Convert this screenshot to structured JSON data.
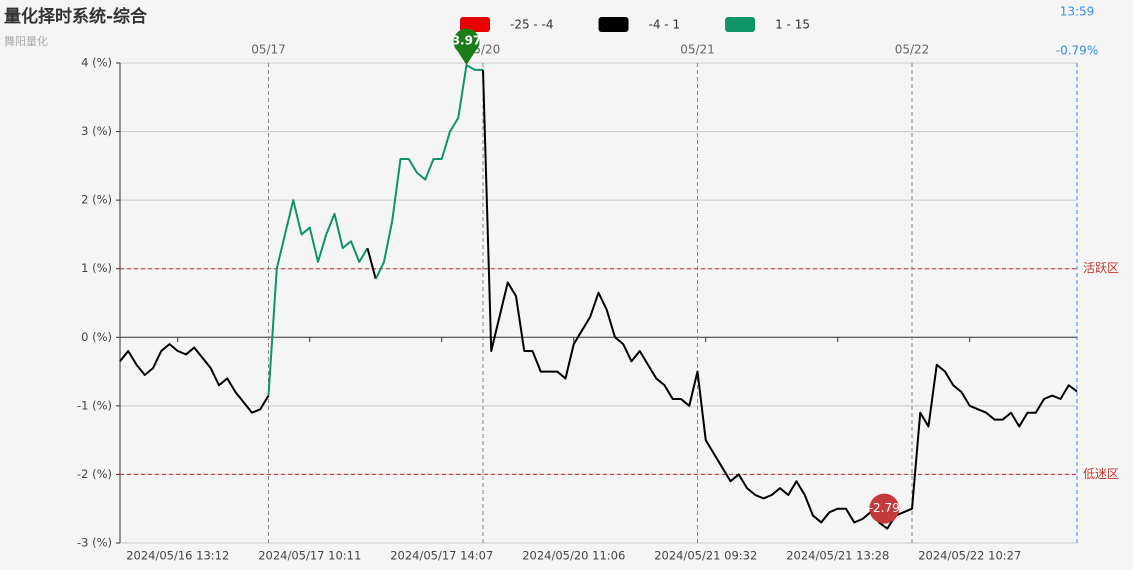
{
  "chart_data": {
    "type": "line",
    "title": "量化择时系统-综合",
    "subtitle": "舞阳量化",
    "categories": [
      null,
      null,
      null,
      null,
      null,
      null,
      null,
      "2024/05/16 13:12",
      null,
      null,
      null,
      null,
      null,
      null,
      null,
      null,
      null,
      null,
      null,
      null,
      null,
      null,
      null,
      "2024/05/17 10:11",
      null,
      null,
      null,
      null,
      null,
      null,
      null,
      null,
      null,
      null,
      null,
      null,
      null,
      null,
      null,
      "2024/05/17 14:07",
      null,
      null,
      null,
      null,
      null,
      null,
      null,
      null,
      null,
      null,
      null,
      null,
      null,
      null,
      null,
      "2024/05/20 11:06",
      null,
      null,
      null,
      null,
      null,
      null,
      null,
      null,
      null,
      null,
      null,
      null,
      null,
      null,
      null,
      "2024/05/21 09:32",
      null,
      null,
      null,
      null,
      null,
      null,
      null,
      null,
      null,
      null,
      null,
      null,
      null,
      null,
      null,
      "2024/05/21 13:28",
      null,
      null,
      null,
      null,
      null,
      null,
      null,
      null,
      null,
      null,
      null,
      null,
      null,
      null,
      null,
      "2024/05/22 10:27",
      null,
      null,
      null,
      null,
      null,
      null,
      null,
      null,
      null,
      null,
      null,
      null,
      null
    ],
    "day_labels": [
      null,
      null,
      null,
      null,
      null,
      null,
      null,
      null,
      null,
      null,
      null,
      null,
      null,
      null,
      null,
      null,
      null,
      null,
      "05/17",
      null,
      null,
      null,
      null,
      null,
      null,
      null,
      null,
      null,
      null,
      null,
      null,
      null,
      null,
      null,
      null,
      null,
      null,
      null,
      null,
      null,
      null,
      null,
      null,
      null,
      "05/20",
      null,
      null,
      null,
      null,
      null,
      null,
      null,
      null,
      null,
      null,
      null,
      null,
      null,
      null,
      null,
      null,
      null,
      null,
      null,
      null,
      null,
      null,
      null,
      null,
      null,
      "05/21",
      null,
      null,
      null,
      null,
      null,
      null,
      null,
      null,
      null,
      null,
      null,
      null,
      null,
      null,
      null,
      null,
      null,
      null,
      null,
      null,
      null,
      null,
      null,
      null,
      null,
      "05/22",
      null,
      null,
      null,
      null,
      null,
      null,
      null,
      null,
      null,
      null,
      null,
      null,
      null,
      null,
      null,
      null,
      null,
      null,
      null,
      null
    ],
    "values": [
      -0.35,
      -0.2,
      -0.4,
      -0.55,
      -0.45,
      -0.2,
      -0.1,
      -0.2,
      -0.25,
      -0.15,
      -0.3,
      -0.45,
      -0.7,
      -0.6,
      -0.8,
      -0.95,
      -1.1,
      -1.05,
      -0.85,
      1.0,
      1.5,
      2.0,
      1.5,
      1.6,
      1.1,
      1.5,
      1.8,
      1.3,
      1.4,
      1.1,
      1.3,
      0.85,
      1.1,
      1.7,
      2.6,
      2.6,
      2.4,
      2.3,
      2.6,
      2.6,
      3.0,
      3.2,
      3.97,
      3.9,
      3.9,
      -0.2,
      0.3,
      0.8,
      0.6,
      -0.2,
      -0.2,
      -0.5,
      -0.5,
      -0.5,
      -0.6,
      -0.1,
      0.1,
      0.3,
      0.65,
      0.4,
      0.0,
      -0.1,
      -0.35,
      -0.2,
      -0.4,
      -0.6,
      -0.7,
      -0.9,
      -0.9,
      -1.0,
      -0.5,
      -1.5,
      -1.7,
      -1.9,
      -2.1,
      -2.0,
      -2.2,
      -2.3,
      -2.35,
      -2.3,
      -2.2,
      -2.3,
      -2.1,
      -2.3,
      -2.6,
      -2.7,
      -2.55,
      -2.5,
      -2.5,
      -2.7,
      -2.65,
      -2.55,
      -2.7,
      -2.79,
      -2.6,
      -2.55,
      -2.5,
      -1.1,
      -1.3,
      -0.4,
      -0.5,
      -0.7,
      -0.8,
      -1.0,
      -1.05,
      -1.1,
      -1.2,
      -1.2,
      -1.1,
      -1.3,
      -1.1,
      -1.1,
      -0.9,
      -0.85,
      -0.9,
      -0.7,
      -0.79
    ],
    "end_label": {
      "time": "13:59",
      "value": "-0.79%"
    },
    "color_ranges": [
      {
        "name": "-25 - -4",
        "color": "#e60000",
        "range": [
          -25,
          -4
        ]
      },
      {
        "name": "-4 - 1",
        "color": "#000000",
        "range": [
          -4,
          1
        ]
      },
      {
        "name": "1 - 15",
        "color": "#0e9466",
        "range": [
          1,
          15
        ]
      }
    ],
    "marker_colors": {
      "max": "#1a7d1a",
      "min": "#c43a3a"
    },
    "reference_lines": [
      {
        "value": 1,
        "label": "活跃区",
        "color": "#c0392b"
      },
      {
        "value": -2,
        "label": "低迷区",
        "color": "#c0392b"
      }
    ],
    "ylim": [
      -3,
      4
    ],
    "yticks": [
      {
        "value": 4,
        "label": "4 (%)"
      },
      {
        "value": 3,
        "label": "3 (%)"
      },
      {
        "value": 2,
        "label": "2 (%)"
      },
      {
        "value": 1,
        "label": "1 (%)"
      },
      {
        "value": 0,
        "label": "0 (%)"
      },
      {
        "value": -1,
        "label": "-1 (%)"
      },
      {
        "value": -2,
        "label": "-2 (%)"
      },
      {
        "value": -3,
        "label": "-3 (%)"
      }
    ],
    "grid": true
  }
}
